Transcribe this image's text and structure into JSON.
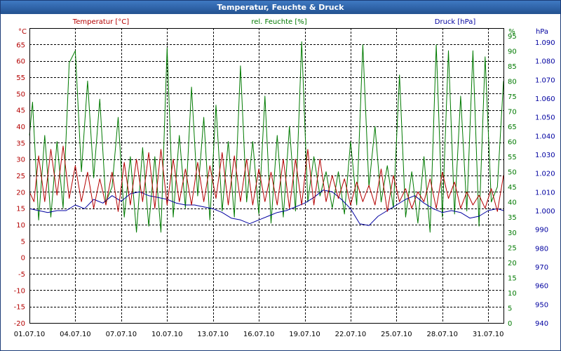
{
  "window": {
    "title": "Temperatur, Feuchte & Druck"
  },
  "chart_data": {
    "type": "line",
    "title": "Temperatur, Feuchte & Druck",
    "x_tick_labels": [
      "01.07.10",
      "04.07.10",
      "07.07.10",
      "10.07.10",
      "13.07.10",
      "16.07.10",
      "19.07.10",
      "22.07.10",
      "25.07.10",
      "28.07.10",
      "31.07.10"
    ],
    "x_range_days": [
      0,
      31
    ],
    "grid": true,
    "colors": {
      "temp": "#b40000",
      "hum": "#007a00",
      "press": "#0000a0",
      "frame": "#2f63a8"
    },
    "axes": {
      "left": {
        "unit": "°C",
        "min": -20,
        "max": 70,
        "ticks": [
          -20,
          -15,
          -10,
          -5,
          0,
          5,
          10,
          15,
          20,
          25,
          30,
          35,
          40,
          45,
          50,
          55,
          60,
          65
        ]
      },
      "hum": {
        "unit": "%",
        "min": 0,
        "max": 97.5,
        "ticks": [
          0,
          5,
          10,
          15,
          20,
          25,
          30,
          35,
          40,
          45,
          50,
          55,
          60,
          65,
          70,
          75,
          80,
          85,
          90,
          95
        ]
      },
      "right": {
        "unit": "hPa",
        "min": 940,
        "max": 1097.5,
        "tick_labels": [
          "940",
          "950",
          "960",
          "970",
          "980",
          "990",
          "1.000",
          "1.010",
          "1.020",
          "1.030",
          "1.040",
          "1.050",
          "1.060",
          "1.070",
          "1.080",
          "1.090"
        ]
      }
    },
    "series": [
      {
        "name": "Temperatur [°C]",
        "axis": "left",
        "color": "#b40000",
        "x": [
          0,
          0.3,
          0.6,
          1.0,
          1.4,
          1.8,
          2.2,
          2.6,
          3.0,
          3.4,
          3.8,
          4.2,
          4.6,
          5.0,
          5.4,
          5.8,
          6.2,
          6.6,
          7.0,
          7.4,
          7.8,
          8.2,
          8.6,
          9.0,
          9.4,
          9.8,
          10.2,
          10.6,
          11.0,
          11.4,
          11.8,
          12.2,
          12.6,
          13.0,
          13.4,
          13.8,
          14.2,
          14.6,
          15.0,
          15.4,
          15.8,
          16.2,
          16.6,
          17.0,
          17.4,
          17.8,
          18.2,
          18.6,
          19.0,
          19.4,
          19.8,
          20.2,
          20.6,
          21.0,
          21.4,
          21.8,
          22.2,
          22.6,
          23.0,
          23.4,
          23.8,
          24.2,
          24.6,
          25.0,
          25.4,
          25.8,
          26.2,
          26.6,
          27.0,
          27.4,
          27.8,
          28.2,
          28.6,
          29.0,
          29.4,
          29.8,
          30.2,
          30.6,
          31.0
        ],
        "values": [
          20,
          17,
          31,
          17,
          33,
          19,
          34,
          18,
          28,
          17,
          26,
          15,
          24,
          16,
          26,
          14,
          29,
          16,
          30,
          17,
          32,
          15,
          33,
          16,
          30,
          17,
          27,
          16,
          29,
          17,
          28,
          18,
          32,
          16,
          31,
          17,
          30,
          16,
          27,
          17,
          26,
          16,
          30,
          15,
          30,
          16,
          33,
          16,
          30,
          17,
          25,
          18,
          24,
          16,
          23,
          17,
          22,
          16,
          27,
          14,
          25,
          17,
          21,
          15,
          20,
          17,
          24,
          15,
          26,
          18,
          23,
          15,
          20,
          16,
          19,
          15,
          21,
          14,
          25
        ]
      },
      {
        "name": "rel. Feuchte [%]",
        "axis": "hum",
        "color": "#007a00",
        "x": [
          0,
          0.2,
          0.6,
          1.0,
          1.4,
          1.8,
          2.2,
          2.6,
          3.0,
          3.4,
          3.8,
          4.2,
          4.6,
          5.0,
          5.4,
          5.8,
          6.2,
          6.6,
          7.0,
          7.4,
          7.8,
          8.2,
          8.6,
          9.0,
          9.4,
          9.8,
          10.2,
          10.6,
          11.0,
          11.4,
          11.8,
          12.2,
          12.6,
          13.0,
          13.4,
          13.8,
          14.2,
          14.6,
          15.0,
          15.4,
          15.8,
          16.2,
          16.6,
          17.0,
          17.4,
          17.8,
          18.2,
          18.6,
          19.0,
          19.4,
          19.8,
          20.2,
          20.6,
          21.0,
          21.4,
          21.8,
          22.2,
          22.6,
          23.0,
          23.4,
          23.8,
          24.2,
          24.6,
          25.0,
          25.4,
          25.8,
          26.2,
          26.6,
          27.0,
          27.4,
          27.8,
          28.2,
          28.6,
          29.0,
          29.4,
          29.8,
          30.2,
          30.6,
          31.0
        ],
        "values": [
          62,
          73,
          34,
          62,
          35,
          60,
          38,
          86,
          90,
          50,
          80,
          48,
          74,
          40,
          45,
          68,
          35,
          55,
          30,
          58,
          32,
          55,
          30,
          91,
          35,
          62,
          38,
          78,
          42,
          68,
          34,
          72,
          37,
          60,
          35,
          85,
          40,
          60,
          36,
          75,
          33,
          62,
          35,
          65,
          37,
          93,
          40,
          55,
          42,
          50,
          38,
          50,
          36,
          60,
          39,
          92,
          45,
          65,
          40,
          52,
          38,
          82,
          35,
          50,
          33,
          55,
          30,
          92,
          35,
          90,
          36,
          75,
          37,
          90,
          32,
          88,
          40,
          45,
          80
        ]
      },
      {
        "name": "Druck [hPa]",
        "axis": "right",
        "color": "#0000a0",
        "x": [
          0,
          0.6,
          1.2,
          1.8,
          2.4,
          3.0,
          3.6,
          4.2,
          4.8,
          5.4,
          6.0,
          6.6,
          7.2,
          7.8,
          8.4,
          9.0,
          9.6,
          10.2,
          10.8,
          11.4,
          12.0,
          12.6,
          13.2,
          13.8,
          14.4,
          15.0,
          15.6,
          16.2,
          16.8,
          17.4,
          18.0,
          18.6,
          19.2,
          19.8,
          20.4,
          21.0,
          21.6,
          22.2,
          22.8,
          23.4,
          24.0,
          24.6,
          25.2,
          25.8,
          26.4,
          27.0,
          27.6,
          28.2,
          28.8,
          29.4,
          30.0,
          30.6,
          31.0
        ],
        "values": [
          1001,
          1000,
          999,
          1000,
          1000,
          1003,
          1001,
          1006,
          1004,
          1008,
          1005,
          1009,
          1010,
          1008,
          1007,
          1006,
          1004,
          1003,
          1003,
          1002,
          1001,
          999,
          996,
          995,
          993,
          995,
          997,
          999,
          1000,
          1002,
          1004,
          1007,
          1011,
          1010,
          1006,
          1001,
          993,
          992,
          997,
          1000,
          1003,
          1006,
          1008,
          1004,
          1001,
          999,
          1000,
          999,
          996,
          997,
          1000,
          1001,
          1000
        ]
      }
    ],
    "legend": [
      {
        "label": "Temperatur [°C]",
        "color": "#b40000"
      },
      {
        "label": "rel. Feuchte [%]",
        "color": "#007a00"
      },
      {
        "label": "Druck [hPa]",
        "color": "#0000a0"
      }
    ]
  }
}
